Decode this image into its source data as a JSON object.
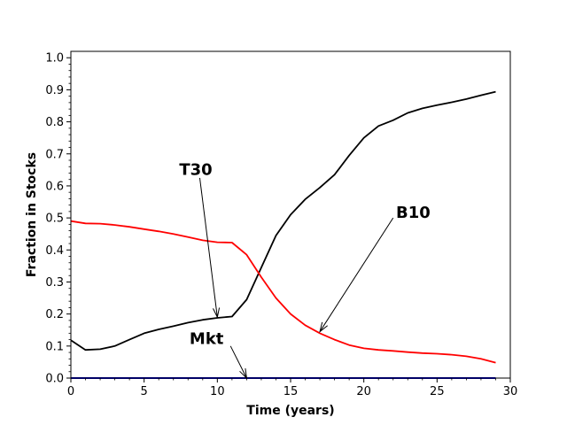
{
  "chart_data": {
    "type": "line",
    "xlabel": "Time (years)",
    "ylabel": "Fraction in Stocks",
    "xlim": [
      0,
      30
    ],
    "ylim": [
      0.0,
      1.02
    ],
    "xticks": [
      0,
      5,
      10,
      15,
      20,
      25,
      30
    ],
    "yticks": [
      "0.0",
      "0.1",
      "0.2",
      "0.3",
      "0.4",
      "0.5",
      "0.6",
      "0.7",
      "0.8",
      "0.9",
      "1.0"
    ],
    "grid": false,
    "series": [
      {
        "name": "T30",
        "color": "#000000",
        "x": [
          0,
          1,
          2,
          3,
          4,
          5,
          6,
          7,
          8,
          9,
          10,
          11,
          12,
          13,
          14,
          15,
          16,
          17,
          18,
          19,
          20,
          21,
          22,
          23,
          24,
          25,
          26,
          27,
          28,
          29
        ],
        "values": [
          0.118,
          0.088,
          0.09,
          0.1,
          0.12,
          0.14,
          0.152,
          0.162,
          0.173,
          0.182,
          0.188,
          0.192,
          0.245,
          0.345,
          0.445,
          0.51,
          0.558,
          0.595,
          0.635,
          0.695,
          0.75,
          0.787,
          0.805,
          0.828,
          0.842,
          0.852,
          0.861,
          0.871,
          0.883,
          0.894
        ]
      },
      {
        "name": "B10",
        "color": "#ff0000",
        "x": [
          0,
          1,
          2,
          3,
          4,
          5,
          6,
          7,
          8,
          9,
          10,
          11,
          12,
          13,
          14,
          15,
          16,
          17,
          18,
          19,
          20,
          21,
          22,
          23,
          24,
          25,
          26,
          27,
          28,
          29
        ],
        "values": [
          0.49,
          0.483,
          0.482,
          0.478,
          0.472,
          0.465,
          0.458,
          0.45,
          0.44,
          0.43,
          0.424,
          0.423,
          0.385,
          0.315,
          0.25,
          0.2,
          0.165,
          0.14,
          0.12,
          0.103,
          0.093,
          0.088,
          0.085,
          0.081,
          0.078,
          0.076,
          0.073,
          0.068,
          0.06,
          0.048
        ]
      },
      {
        "name": "Mkt",
        "color": "#0000cc",
        "x": [
          0,
          29
        ],
        "values": [
          0.0,
          0.0
        ]
      }
    ],
    "annotations": [
      {
        "text": "T30",
        "text_x": 7.4,
        "text_y": 0.635,
        "tail_x": 8.8,
        "tail_y": 0.625,
        "head_x": 10.0,
        "head_y": 0.19
      },
      {
        "text": "B10",
        "text_x": 22.2,
        "text_y": 0.5,
        "tail_x": 22.0,
        "tail_y": 0.5,
        "head_x": 17.0,
        "head_y": 0.145
      },
      {
        "text": "Mkt",
        "text_x": 8.1,
        "text_y": 0.107,
        "tail_x": 10.9,
        "tail_y": 0.1,
        "head_x": 12.0,
        "head_y": 0.0
      }
    ]
  }
}
